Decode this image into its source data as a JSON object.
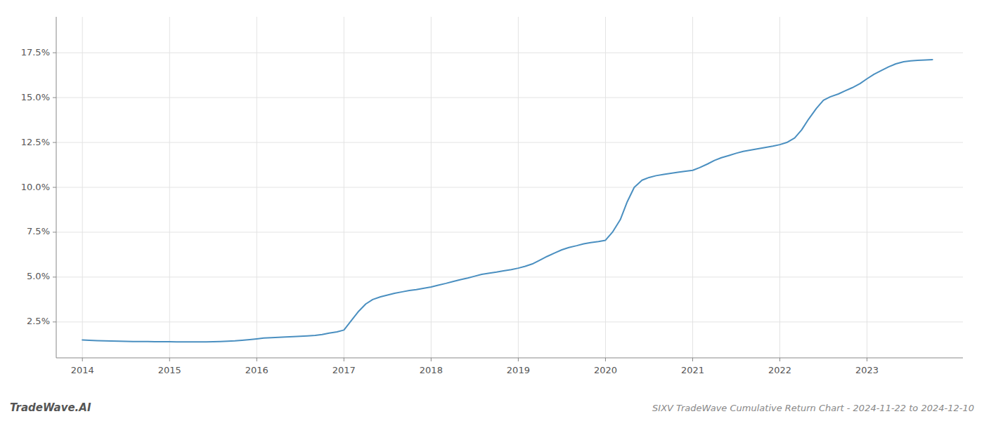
{
  "chart_data": {
    "type": "line",
    "title": "SIXV TradeWave Cumulative Return Chart - 2024-11-22 to 2024-12-10",
    "annotations": [
      "TradeWave.AI"
    ],
    "color": "#4a8fc0",
    "grid": true,
    "x": [
      2014.0,
      2014.08,
      2014.17,
      2014.25,
      2014.33,
      2014.42,
      2014.5,
      2014.58,
      2014.67,
      2014.75,
      2014.83,
      2014.92,
      2015.0,
      2015.08,
      2015.17,
      2015.25,
      2015.33,
      2015.42,
      2015.5,
      2015.58,
      2015.67,
      2015.75,
      2015.83,
      2015.92,
      2016.0,
      2016.08,
      2016.17,
      2016.25,
      2016.33,
      2016.42,
      2016.5,
      2016.58,
      2016.67,
      2016.75,
      2016.83,
      2016.92,
      2017.0,
      2017.08,
      2017.17,
      2017.25,
      2017.33,
      2017.42,
      2017.5,
      2017.58,
      2017.67,
      2017.75,
      2017.83,
      2017.92,
      2018.0,
      2018.08,
      2018.17,
      2018.25,
      2018.33,
      2018.42,
      2018.5,
      2018.58,
      2018.67,
      2018.75,
      2018.83,
      2018.92,
      2019.0,
      2019.08,
      2019.17,
      2019.25,
      2019.33,
      2019.42,
      2019.5,
      2019.58,
      2019.67,
      2019.75,
      2019.83,
      2019.92,
      2020.0,
      2020.08,
      2020.17,
      2020.25,
      2020.33,
      2020.42,
      2020.5,
      2020.58,
      2020.67,
      2020.75,
      2020.83,
      2020.92,
      2021.0,
      2021.08,
      2021.17,
      2021.25,
      2021.33,
      2021.42,
      2021.5,
      2021.58,
      2021.67,
      2021.75,
      2021.83,
      2021.92,
      2022.0,
      2022.08,
      2022.17,
      2022.25,
      2022.33,
      2022.42,
      2022.5,
      2022.58,
      2022.67,
      2022.75,
      2022.83,
      2022.92,
      2023.0,
      2023.08,
      2023.17,
      2023.25,
      2023.33,
      2023.42,
      2023.5,
      2023.58,
      2023.67,
      2023.75
    ],
    "values": [
      1.5,
      1.48,
      1.46,
      1.45,
      1.44,
      1.43,
      1.42,
      1.41,
      1.41,
      1.41,
      1.4,
      1.4,
      1.4,
      1.39,
      1.39,
      1.39,
      1.39,
      1.39,
      1.4,
      1.41,
      1.43,
      1.45,
      1.48,
      1.52,
      1.56,
      1.6,
      1.62,
      1.64,
      1.66,
      1.68,
      1.7,
      1.72,
      1.75,
      1.8,
      1.88,
      1.95,
      2.05,
      2.55,
      3.1,
      3.5,
      3.75,
      3.9,
      4.0,
      4.1,
      4.18,
      4.25,
      4.3,
      4.38,
      4.45,
      4.55,
      4.65,
      4.75,
      4.85,
      4.95,
      5.05,
      5.15,
      5.22,
      5.28,
      5.35,
      5.42,
      5.5,
      5.6,
      5.75,
      5.95,
      6.15,
      6.35,
      6.52,
      6.65,
      6.75,
      6.85,
      6.92,
      6.98,
      7.05,
      7.5,
      8.2,
      9.2,
      10.0,
      10.4,
      10.55,
      10.65,
      10.72,
      10.78,
      10.84,
      10.9,
      10.95,
      11.1,
      11.3,
      11.5,
      11.65,
      11.78,
      11.9,
      12.0,
      12.08,
      12.15,
      12.22,
      12.3,
      12.38,
      12.5,
      12.75,
      13.2,
      13.8,
      14.4,
      14.85,
      15.05,
      15.2,
      15.38,
      15.55,
      15.78,
      16.05,
      16.3,
      16.52,
      16.72,
      16.88,
      17.0,
      17.05,
      17.08,
      17.1,
      17.12
    ],
    "xlim": [
      2013.7,
      2024.1
    ],
    "ylim": [
      0.5,
      19.5
    ],
    "xticks": [
      2014,
      2015,
      2016,
      2017,
      2018,
      2019,
      2020,
      2021,
      2022,
      2023
    ],
    "yticks": [
      {
        "value": 2.5,
        "label": "2.5%"
      },
      {
        "value": 5.0,
        "label": "5.0%"
      },
      {
        "value": 7.5,
        "label": "7.5%"
      },
      {
        "value": 10.0,
        "label": "10.0%"
      },
      {
        "value": 12.5,
        "label": "12.5%"
      },
      {
        "value": 15.0,
        "label": "15.0%"
      },
      {
        "value": 17.5,
        "label": "17.5%"
      }
    ]
  }
}
